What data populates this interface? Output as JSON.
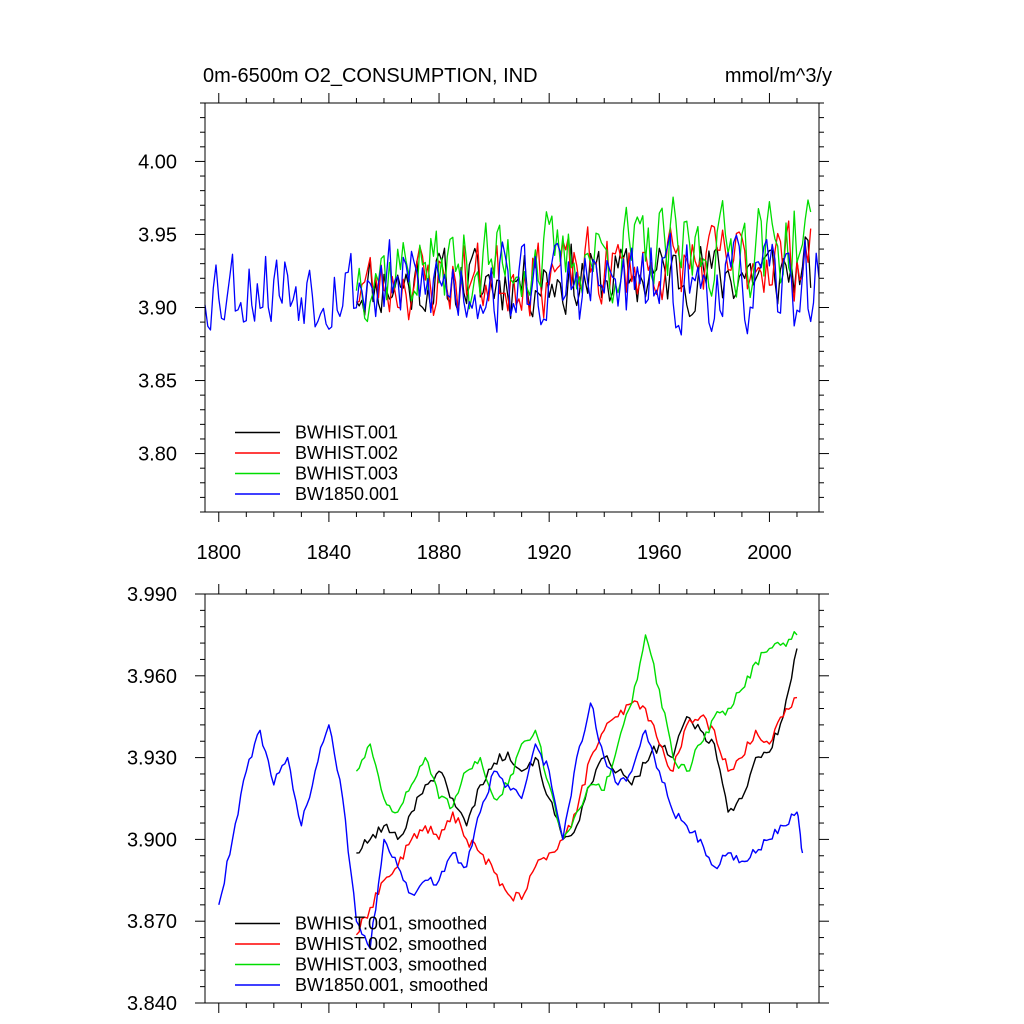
{
  "chart_data": [
    {
      "type": "line",
      "title": "0m-6500m O2_CONSUMPTION, IND",
      "units": "mmol/m^3/y",
      "xlim": [
        1795,
        2018
      ],
      "ylim": [
        3.76,
        4.04
      ],
      "xticks": [
        1800,
        1840,
        1880,
        1920,
        1960,
        2000
      ],
      "xtick_labels": [
        "1800",
        "1840",
        "1880",
        "1920",
        "1960",
        "2000"
      ],
      "yticks": [
        3.8,
        3.85,
        3.9,
        3.95,
        4.0
      ],
      "ytick_labels": [
        "3.80",
        "3.85",
        "3.90",
        "3.95",
        "4.00"
      ],
      "grid": false,
      "legend_position": "bottom-left",
      "series": [
        {
          "name": "BWHIST.001",
          "color": "#000000",
          "x_start": 1850,
          "x_end": 2015,
          "mean": 3.915,
          "amp": 0.035,
          "seed": 11,
          "trend": 0.01
        },
        {
          "name": "BWHIST.002",
          "color": "#ff0000",
          "x_start": 1850,
          "x_end": 2015,
          "mean": 3.915,
          "amp": 0.038,
          "seed": 23,
          "trend": 0.02
        },
        {
          "name": "BWHIST.003",
          "color": "#00dd00",
          "x_start": 1850,
          "x_end": 2015,
          "mean": 3.925,
          "amp": 0.045,
          "seed": 37,
          "trend": 0.02
        },
        {
          "name": "BW1850.001",
          "color": "#0000ff",
          "x_start": 1795,
          "x_end": 2018,
          "mean": 3.915,
          "amp": 0.045,
          "seed": 53,
          "trend": 0.0
        }
      ]
    },
    {
      "type": "line",
      "xlim": [
        1795,
        2018
      ],
      "ylim": [
        3.84,
        3.99
      ],
      "yticks": [
        3.84,
        3.87,
        3.9,
        3.93,
        3.96,
        3.99
      ],
      "ytick_labels": [
        "3.840",
        "3.870",
        "3.900",
        "3.930",
        "3.960",
        "3.990"
      ],
      "grid": false,
      "legend_position": "bottom-left",
      "series": [
        {
          "name": "BWHIST.001, smoothed",
          "color": "#000000",
          "x": [
            1850,
            1855,
            1860,
            1865,
            1870,
            1875,
            1880,
            1885,
            1890,
            1895,
            1900,
            1905,
            1910,
            1915,
            1920,
            1925,
            1930,
            1935,
            1940,
            1945,
            1950,
            1955,
            1960,
            1965,
            1970,
            1975,
            1980,
            1985,
            1990,
            1995,
            2000,
            2005,
            2010
          ],
          "y": [
            3.895,
            3.9,
            3.905,
            3.9,
            3.91,
            3.92,
            3.925,
            3.915,
            3.905,
            3.92,
            3.928,
            3.932,
            3.925,
            3.93,
            3.915,
            3.9,
            3.905,
            3.92,
            3.93,
            3.925,
            3.92,
            3.928,
            3.935,
            3.93,
            3.945,
            3.94,
            3.935,
            3.91,
            3.915,
            3.93,
            3.932,
            3.945,
            3.97
          ]
        },
        {
          "name": "BWHIST.002, smoothed",
          "color": "#ff0000",
          "x": [
            1850,
            1855,
            1860,
            1865,
            1870,
            1875,
            1880,
            1885,
            1890,
            1895,
            1900,
            1905,
            1910,
            1915,
            1920,
            1925,
            1930,
            1935,
            1940,
            1945,
            1950,
            1955,
            1960,
            1965,
            1970,
            1975,
            1980,
            1985,
            1990,
            1995,
            2000,
            2005,
            2010
          ],
          "y": [
            3.865,
            3.875,
            3.885,
            3.89,
            3.9,
            3.905,
            3.9,
            3.91,
            3.9,
            3.895,
            3.888,
            3.88,
            3.878,
            3.89,
            3.895,
            3.9,
            3.91,
            3.93,
            3.94,
            3.945,
            3.95,
            3.948,
            3.935,
            3.925,
            3.942,
            3.945,
            3.94,
            3.925,
            3.93,
            3.94,
            3.935,
            3.945,
            3.952
          ]
        },
        {
          "name": "BWHIST.003, smoothed",
          "color": "#00dd00",
          "x": [
            1850,
            1855,
            1860,
            1865,
            1870,
            1875,
            1880,
            1885,
            1890,
            1895,
            1900,
            1905,
            1910,
            1915,
            1920,
            1925,
            1930,
            1935,
            1940,
            1945,
            1950,
            1955,
            1960,
            1965,
            1970,
            1975,
            1980,
            1985,
            1990,
            1995,
            2000,
            2005,
            2010
          ],
          "y": [
            3.925,
            3.935,
            3.915,
            3.91,
            3.92,
            3.93,
            3.915,
            3.912,
            3.925,
            3.93,
            3.915,
            3.92,
            3.935,
            3.94,
            3.92,
            3.9,
            3.91,
            3.92,
            3.918,
            3.935,
            3.95,
            3.975,
            3.955,
            3.93,
            3.925,
            3.935,
            3.945,
            3.948,
            3.955,
            3.965,
            3.97,
            3.972,
            3.975
          ]
        },
        {
          "name": "BW1850.001, smoothed",
          "color": "#0000ff",
          "x": [
            1800,
            1805,
            1810,
            1815,
            1820,
            1825,
            1830,
            1835,
            1840,
            1845,
            1850,
            1855,
            1860,
            1865,
            1870,
            1875,
            1880,
            1885,
            1890,
            1895,
            1900,
            1905,
            1910,
            1915,
            1920,
            1925,
            1930,
            1935,
            1940,
            1945,
            1950,
            1955,
            1960,
            1965,
            1970,
            1975,
            1980,
            1985,
            1990,
            1995,
            2000,
            2005,
            2010,
            2012
          ],
          "y": [
            3.876,
            3.9,
            3.925,
            3.94,
            3.92,
            3.93,
            3.905,
            3.925,
            3.942,
            3.915,
            3.87,
            3.86,
            3.9,
            3.89,
            3.88,
            3.885,
            3.885,
            3.895,
            3.89,
            3.91,
            3.925,
            3.92,
            3.915,
            3.935,
            3.925,
            3.9,
            3.93,
            3.95,
            3.93,
            3.92,
            3.925,
            3.94,
            3.925,
            3.91,
            3.905,
            3.9,
            3.89,
            3.895,
            3.892,
            3.895,
            3.9,
            3.905,
            3.91,
            3.895
          ]
        }
      ]
    }
  ]
}
